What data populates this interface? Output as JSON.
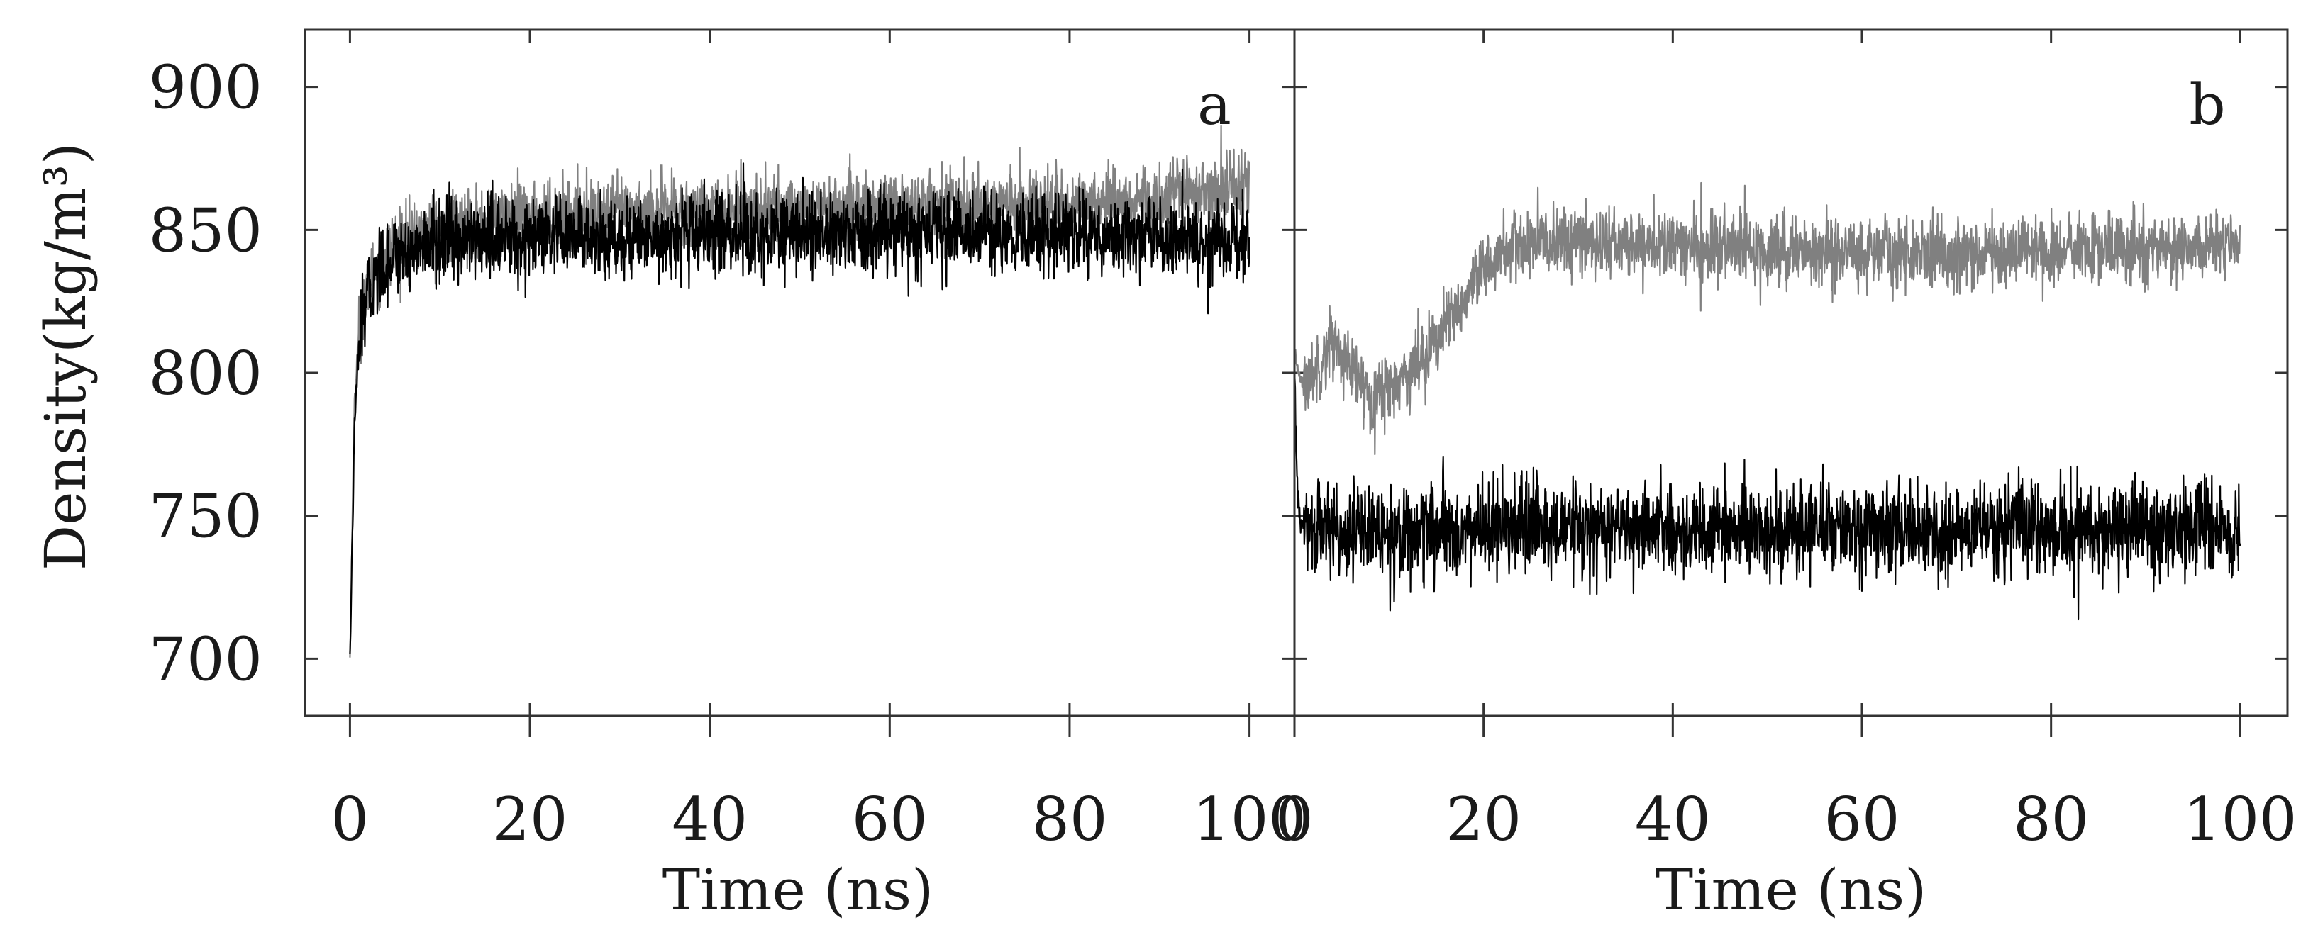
{
  "chart_data": [
    {
      "panel": "a",
      "type": "line",
      "xlabel": "Time (ns)",
      "ylabel": "Density(kg/m³)",
      "xlim": [
        -5,
        105
      ],
      "ylim": [
        680,
        920
      ],
      "x_ticks": [
        "0",
        "20",
        "40",
        "60",
        "80",
        "100"
      ],
      "y_ticks": [
        "700",
        "750",
        "800",
        "850",
        "900"
      ],
      "grid": false,
      "legend": null,
      "series": [
        {
          "color": "#808080",
          "noise": 6,
          "x": [
            0,
            0.5,
            1,
            2,
            3,
            5,
            8,
            10,
            15,
            20,
            30,
            40,
            50,
            60,
            70,
            80,
            90,
            95,
            100
          ],
          "y": [
            700,
            790,
            815,
            830,
            838,
            845,
            848,
            850,
            853,
            854,
            856,
            857,
            857,
            858,
            858,
            859,
            861,
            864,
            866
          ]
        },
        {
          "color": "#000000",
          "noise": 7,
          "x": [
            0,
            0.5,
            1,
            2,
            3,
            5,
            8,
            10,
            15,
            20,
            30,
            40,
            50,
            60,
            70,
            80,
            90,
            95,
            100
          ],
          "y": [
            700,
            780,
            810,
            828,
            835,
            842,
            844,
            846,
            847,
            846,
            847,
            849,
            848,
            849,
            849,
            848,
            847,
            846,
            846
          ]
        }
      ]
    },
    {
      "panel": "b",
      "type": "line",
      "xlabel": "Time (ns)",
      "xlim": [
        0,
        105
      ],
      "ylim": [
        680,
        920
      ],
      "x_ticks": [
        "0",
        "20",
        "40",
        "60",
        "80",
        "100"
      ],
      "y_ticks": [
        "700",
        "750",
        "800",
        "850",
        "900"
      ],
      "grid": false,
      "legend": null,
      "series": [
        {
          "color": "#808080",
          "noise": 6,
          "x": [
            0,
            1,
            3,
            4,
            6,
            8,
            10,
            12,
            15,
            18,
            20,
            22,
            25,
            30,
            40,
            50,
            60,
            70,
            80,
            90,
            100
          ],
          "y": [
            805,
            795,
            805,
            812,
            800,
            792,
            795,
            800,
            812,
            825,
            835,
            843,
            845,
            846,
            844,
            843,
            842,
            842,
            843,
            843,
            844
          ]
        },
        {
          "color": "#000000",
          "noise": 8,
          "x": [
            0,
            0.3,
            0.6,
            1,
            2,
            5,
            10,
            20,
            30,
            40,
            50,
            60,
            70,
            80,
            90,
            100
          ],
          "y": [
            800,
            760,
            748,
            745,
            745,
            745,
            744,
            745,
            745,
            744,
            745,
            745,
            745,
            745,
            745,
            745
          ]
        }
      ]
    }
  ]
}
